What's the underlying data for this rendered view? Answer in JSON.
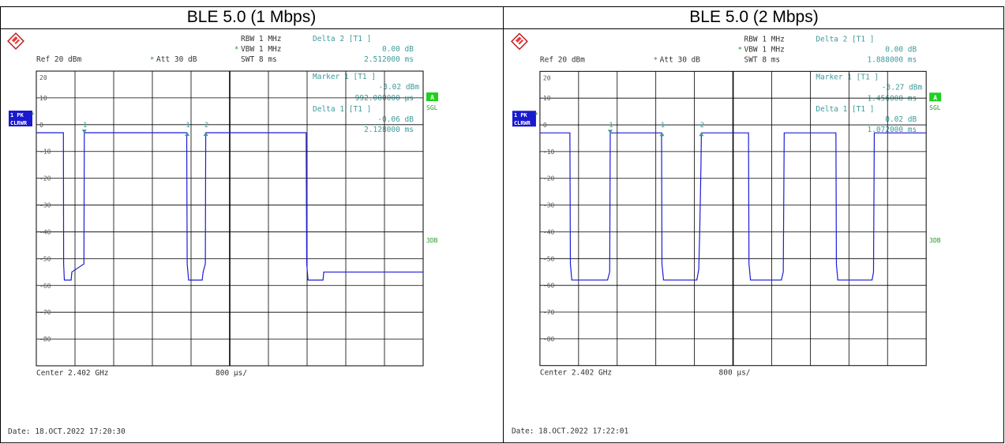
{
  "panels": [
    {
      "title": "BLE 5.0 (1 Mbps)",
      "settings": {
        "rbw": "RBW 1 MHz",
        "vbw": "VBW 1 MHz",
        "swt": "SWT 8 ms",
        "ref": "Ref  20 dBm",
        "att": "Att  30 dB"
      },
      "readouts": {
        "delta2_label": "Delta 2 [T1 ]",
        "delta2_db": "0.00 dB",
        "delta2_time": "2.512000 ms",
        "marker1_label": "Marker 1 [T1 ]",
        "marker1_dbm": "-3.02 dBm",
        "marker1_time": "992.000000 µs",
        "delta1_label": "Delta 1 [T1 ]",
        "delta1_db": "-0.06 dB",
        "delta1_time": "2.128000 ms"
      },
      "side": {
        "trace_label_1": "1 PK",
        "trace_label_2": "CLRWR",
        "a_badge": "A",
        "sgl": "SGL",
        "db3": "3DB"
      },
      "footer": {
        "center": "Center 2.402 GHz",
        "span": "800 µs/",
        "date": "Date: 18.OCT.2022  17:20:30"
      },
      "markers": [
        {
          "label": "1",
          "x_us": 992
        },
        {
          "label": "1",
          "x_us": 3120
        },
        {
          "label": "2",
          "x_us": 3504
        }
      ]
    },
    {
      "title": "BLE 5.0 (2 Mbps)",
      "settings": {
        "rbw": "RBW 1 MHz",
        "vbw": "VBW 1 MHz",
        "swt": "SWT 8 ms",
        "ref": "Ref  20 dBm",
        "att": "Att  30 dB"
      },
      "readouts": {
        "delta2_label": "Delta 2 [T1 ]",
        "delta2_db": "0.00 dB",
        "delta2_time": "1.888000 ms",
        "marker1_label": "Marker 1 [T1 ]",
        "marker1_dbm": "-3.27 dBm",
        "marker1_time": "1.456000 ms",
        "delta1_label": "Delta 1 [T1 ]",
        "delta1_db": "0.02 dB",
        "delta1_time": "1.072000 ms"
      },
      "side": {
        "trace_label_1": "1 PK",
        "trace_label_2": "CLRWR",
        "a_badge": "A",
        "sgl": "SGL",
        "db3": "3DB"
      },
      "footer": {
        "center": "Center 2.402 GHz",
        "span": "800 µs/",
        "date": "Date: 18.OCT.2022  17:22:01"
      },
      "markers": [
        {
          "label": "1",
          "x_us": 1456
        },
        {
          "label": "1",
          "x_us": 2528
        },
        {
          "label": "2",
          "x_us": 3344
        }
      ]
    }
  ],
  "chart_data": [
    {
      "type": "line",
      "title": "BLE 5.0 (1 Mbps)",
      "x_unit": "µs",
      "xlim": [
        0,
        8000
      ],
      "ylim": [
        -90,
        20
      ],
      "y_ticks": [
        20,
        10,
        0,
        -10,
        -20,
        -30,
        -40,
        -50,
        -60,
        -70,
        -80
      ],
      "grid": true,
      "series": [
        {
          "x": [
            0,
            560,
            565,
            580,
            700,
            720,
            735,
            985,
            992,
            3110,
            3120,
            3150,
            3400,
            3430,
            3450,
            3495,
            3504,
            5580,
            5592,
            5620,
            5900,
            5930,
            5945,
            8000
          ],
          "y": [
            -3,
            -3,
            -52,
            -58,
            -58,
            -58,
            -55,
            -52,
            -3,
            -3,
            -52,
            -58,
            -58,
            -58,
            -55,
            -52,
            -3,
            -3,
            -52,
            -58,
            -58,
            -58,
            -55,
            -55
          ]
        }
      ],
      "line_color": "#1c1cd8"
    },
    {
      "type": "line",
      "title": "BLE 5.0 (2 Mbps)",
      "x_unit": "µs",
      "xlim": [
        0,
        8000
      ],
      "ylim": [
        -90,
        20
      ],
      "y_ticks": [
        20,
        10,
        0,
        -10,
        -20,
        -30,
        -40,
        -50,
        -60,
        -70,
        -80
      ],
      "grid": true,
      "series": [
        {
          "x": [
            0,
            620,
            630,
            660,
            1400,
            1445,
            1456,
            2520,
            2528,
            2560,
            3250,
            3290,
            3310,
            3335,
            3344,
            4320,
            4330,
            4360,
            5000,
            5040,
            5060,
            6130,
            6140,
            6170,
            6880,
            6910,
            6925,
            8000
          ],
          "y": [
            -3,
            -3,
            -52,
            -58,
            -58,
            -55,
            -3,
            -3,
            -52,
            -58,
            -58,
            -54,
            -40,
            -15,
            -3,
            -3,
            -52,
            -58,
            -58,
            -55,
            -3,
            -3,
            -52,
            -58,
            -58,
            -55,
            -3,
            -3
          ]
        }
      ],
      "line_color": "#1c1cd8"
    }
  ]
}
